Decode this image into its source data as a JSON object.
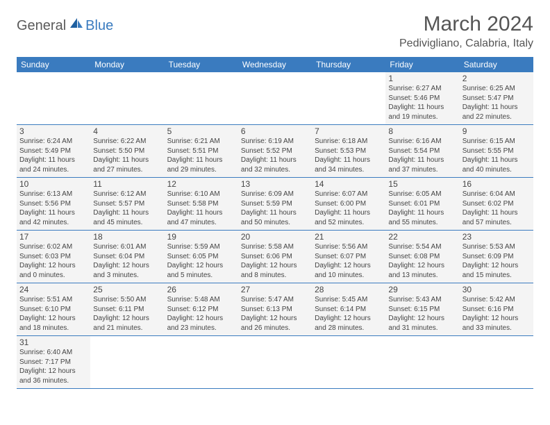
{
  "logo": {
    "part1": "General",
    "part2": "Blue"
  },
  "title": "March 2024",
  "location": "Pedivigliano, Calabria, Italy",
  "colors": {
    "header_bg": "#3a7bbf",
    "header_text": "#ffffff",
    "cell_bg": "#f4f4f4",
    "border": "#3a7bbf",
    "title_color": "#555555",
    "logo_gray": "#5a5a5a",
    "logo_blue": "#3a7bbf"
  },
  "weekdays": [
    "Sunday",
    "Monday",
    "Tuesday",
    "Wednesday",
    "Thursday",
    "Friday",
    "Saturday"
  ],
  "weeks": [
    [
      null,
      null,
      null,
      null,
      null,
      {
        "n": "1",
        "sr": "Sunrise: 6:27 AM",
        "ss": "Sunset: 5:46 PM",
        "d1": "Daylight: 11 hours",
        "d2": "and 19 minutes."
      },
      {
        "n": "2",
        "sr": "Sunrise: 6:25 AM",
        "ss": "Sunset: 5:47 PM",
        "d1": "Daylight: 11 hours",
        "d2": "and 22 minutes."
      }
    ],
    [
      {
        "n": "3",
        "sr": "Sunrise: 6:24 AM",
        "ss": "Sunset: 5:49 PM",
        "d1": "Daylight: 11 hours",
        "d2": "and 24 minutes."
      },
      {
        "n": "4",
        "sr": "Sunrise: 6:22 AM",
        "ss": "Sunset: 5:50 PM",
        "d1": "Daylight: 11 hours",
        "d2": "and 27 minutes."
      },
      {
        "n": "5",
        "sr": "Sunrise: 6:21 AM",
        "ss": "Sunset: 5:51 PM",
        "d1": "Daylight: 11 hours",
        "d2": "and 29 minutes."
      },
      {
        "n": "6",
        "sr": "Sunrise: 6:19 AM",
        "ss": "Sunset: 5:52 PM",
        "d1": "Daylight: 11 hours",
        "d2": "and 32 minutes."
      },
      {
        "n": "7",
        "sr": "Sunrise: 6:18 AM",
        "ss": "Sunset: 5:53 PM",
        "d1": "Daylight: 11 hours",
        "d2": "and 34 minutes."
      },
      {
        "n": "8",
        "sr": "Sunrise: 6:16 AM",
        "ss": "Sunset: 5:54 PM",
        "d1": "Daylight: 11 hours",
        "d2": "and 37 minutes."
      },
      {
        "n": "9",
        "sr": "Sunrise: 6:15 AM",
        "ss": "Sunset: 5:55 PM",
        "d1": "Daylight: 11 hours",
        "d2": "and 40 minutes."
      }
    ],
    [
      {
        "n": "10",
        "sr": "Sunrise: 6:13 AM",
        "ss": "Sunset: 5:56 PM",
        "d1": "Daylight: 11 hours",
        "d2": "and 42 minutes."
      },
      {
        "n": "11",
        "sr": "Sunrise: 6:12 AM",
        "ss": "Sunset: 5:57 PM",
        "d1": "Daylight: 11 hours",
        "d2": "and 45 minutes."
      },
      {
        "n": "12",
        "sr": "Sunrise: 6:10 AM",
        "ss": "Sunset: 5:58 PM",
        "d1": "Daylight: 11 hours",
        "d2": "and 47 minutes."
      },
      {
        "n": "13",
        "sr": "Sunrise: 6:09 AM",
        "ss": "Sunset: 5:59 PM",
        "d1": "Daylight: 11 hours",
        "d2": "and 50 minutes."
      },
      {
        "n": "14",
        "sr": "Sunrise: 6:07 AM",
        "ss": "Sunset: 6:00 PM",
        "d1": "Daylight: 11 hours",
        "d2": "and 52 minutes."
      },
      {
        "n": "15",
        "sr": "Sunrise: 6:05 AM",
        "ss": "Sunset: 6:01 PM",
        "d1": "Daylight: 11 hours",
        "d2": "and 55 minutes."
      },
      {
        "n": "16",
        "sr": "Sunrise: 6:04 AM",
        "ss": "Sunset: 6:02 PM",
        "d1": "Daylight: 11 hours",
        "d2": "and 57 minutes."
      }
    ],
    [
      {
        "n": "17",
        "sr": "Sunrise: 6:02 AM",
        "ss": "Sunset: 6:03 PM",
        "d1": "Daylight: 12 hours",
        "d2": "and 0 minutes."
      },
      {
        "n": "18",
        "sr": "Sunrise: 6:01 AM",
        "ss": "Sunset: 6:04 PM",
        "d1": "Daylight: 12 hours",
        "d2": "and 3 minutes."
      },
      {
        "n": "19",
        "sr": "Sunrise: 5:59 AM",
        "ss": "Sunset: 6:05 PM",
        "d1": "Daylight: 12 hours",
        "d2": "and 5 minutes."
      },
      {
        "n": "20",
        "sr": "Sunrise: 5:58 AM",
        "ss": "Sunset: 6:06 PM",
        "d1": "Daylight: 12 hours",
        "d2": "and 8 minutes."
      },
      {
        "n": "21",
        "sr": "Sunrise: 5:56 AM",
        "ss": "Sunset: 6:07 PM",
        "d1": "Daylight: 12 hours",
        "d2": "and 10 minutes."
      },
      {
        "n": "22",
        "sr": "Sunrise: 5:54 AM",
        "ss": "Sunset: 6:08 PM",
        "d1": "Daylight: 12 hours",
        "d2": "and 13 minutes."
      },
      {
        "n": "23",
        "sr": "Sunrise: 5:53 AM",
        "ss": "Sunset: 6:09 PM",
        "d1": "Daylight: 12 hours",
        "d2": "and 15 minutes."
      }
    ],
    [
      {
        "n": "24",
        "sr": "Sunrise: 5:51 AM",
        "ss": "Sunset: 6:10 PM",
        "d1": "Daylight: 12 hours",
        "d2": "and 18 minutes."
      },
      {
        "n": "25",
        "sr": "Sunrise: 5:50 AM",
        "ss": "Sunset: 6:11 PM",
        "d1": "Daylight: 12 hours",
        "d2": "and 21 minutes."
      },
      {
        "n": "26",
        "sr": "Sunrise: 5:48 AM",
        "ss": "Sunset: 6:12 PM",
        "d1": "Daylight: 12 hours",
        "d2": "and 23 minutes."
      },
      {
        "n": "27",
        "sr": "Sunrise: 5:47 AM",
        "ss": "Sunset: 6:13 PM",
        "d1": "Daylight: 12 hours",
        "d2": "and 26 minutes."
      },
      {
        "n": "28",
        "sr": "Sunrise: 5:45 AM",
        "ss": "Sunset: 6:14 PM",
        "d1": "Daylight: 12 hours",
        "d2": "and 28 minutes."
      },
      {
        "n": "29",
        "sr": "Sunrise: 5:43 AM",
        "ss": "Sunset: 6:15 PM",
        "d1": "Daylight: 12 hours",
        "d2": "and 31 minutes."
      },
      {
        "n": "30",
        "sr": "Sunrise: 5:42 AM",
        "ss": "Sunset: 6:16 PM",
        "d1": "Daylight: 12 hours",
        "d2": "and 33 minutes."
      }
    ],
    [
      {
        "n": "31",
        "sr": "Sunrise: 6:40 AM",
        "ss": "Sunset: 7:17 PM",
        "d1": "Daylight: 12 hours",
        "d2": "and 36 minutes."
      },
      null,
      null,
      null,
      null,
      null,
      null
    ]
  ]
}
